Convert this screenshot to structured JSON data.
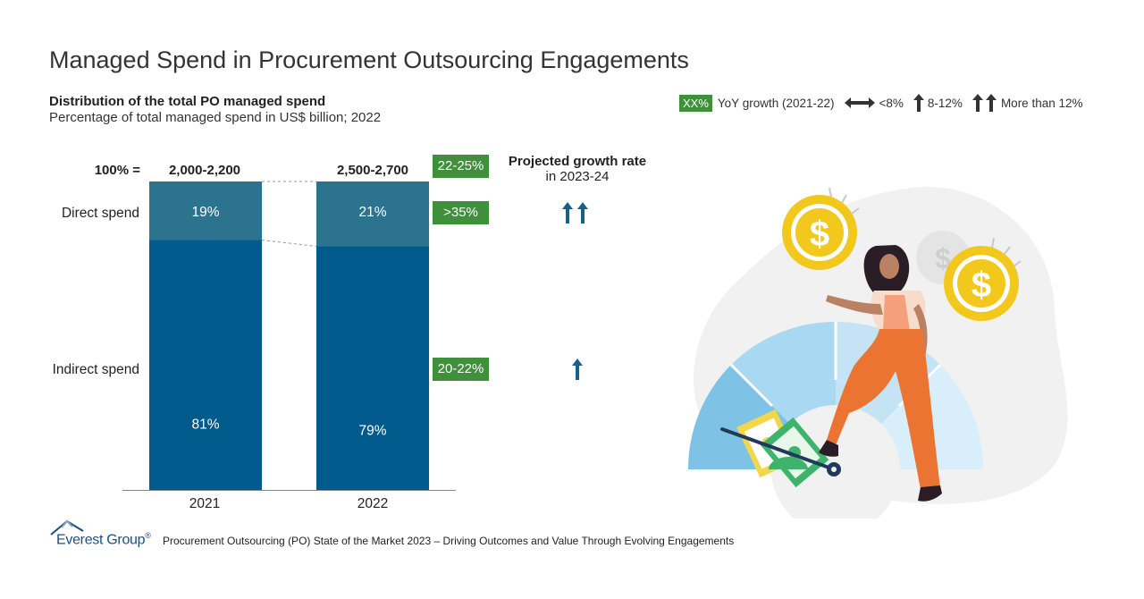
{
  "title": "Managed Spend in Procurement Outsourcing Engagements",
  "subtitle": "Distribution of the total PO managed spend",
  "subsubtitle": "Percentage of total managed spend in US$ billion; 2022",
  "legend": {
    "badge": "XX%",
    "badge_label": "YoY growth (2021-22)",
    "low_label": "<8%",
    "mid_label": "8-12%",
    "high_label": "More than 12%"
  },
  "total_prefix": "100% =",
  "projected_heading": "Projected growth rate",
  "projected_sub": "in 2023-24",
  "colors": {
    "direct": "#2b738e",
    "indirect": "#005a8b",
    "badge": "#3f8f3c",
    "arrow": "#1a5f8c"
  },
  "chart_data": {
    "type": "bar",
    "stacked": true,
    "normalized_percent": true,
    "categories": [
      "2021",
      "2022"
    ],
    "totals": [
      "2,000-2,200",
      "2,500-2,700"
    ],
    "series": [
      {
        "name": "Direct spend",
        "values": [
          19,
          21
        ],
        "labels": [
          "19%",
          "21%"
        ]
      },
      {
        "name": "Indirect spend",
        "values": [
          81,
          79
        ],
        "labels": [
          "81%",
          "79%"
        ]
      }
    ],
    "ylim": [
      0,
      100
    ],
    "yoy_growth": {
      "total": "22-25%",
      "Direct spend": ">35%",
      "Indirect spend": "20-22%"
    },
    "projected_growth": {
      "Direct spend": "More than 12%",
      "Indirect spend": "8-12%"
    }
  },
  "footer": {
    "logo": "Everest Group",
    "registered": "®",
    "source": "Procurement Outsourcing (PO) State of the Market 2023 – Driving Outcomes and Value Through Evolving Engagements"
  }
}
